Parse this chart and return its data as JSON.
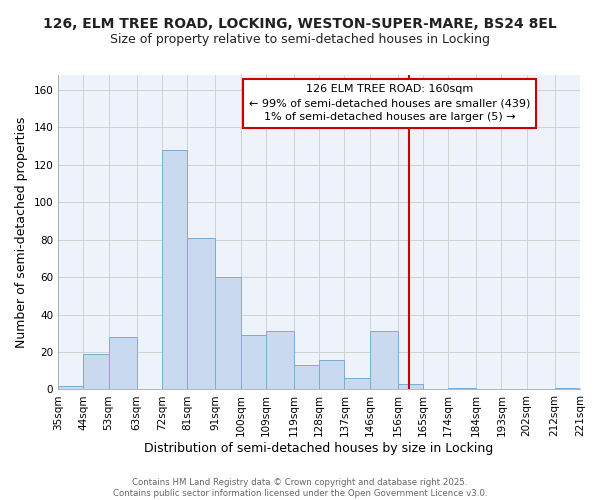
{
  "title": "126, ELM TREE ROAD, LOCKING, WESTON-SUPER-MARE, BS24 8EL",
  "subtitle": "Size of property relative to semi-detached houses in Locking",
  "xlabel": "Distribution of semi-detached houses by size in Locking",
  "ylabel": "Number of semi-detached properties",
  "bar_edges": [
    35,
    44,
    53,
    63,
    72,
    81,
    91,
    100,
    109,
    119,
    128,
    137,
    146,
    156,
    165,
    174,
    184,
    193,
    202,
    212,
    221
  ],
  "bar_heights": [
    2,
    19,
    28,
    0,
    128,
    81,
    60,
    29,
    31,
    13,
    16,
    6,
    31,
    3,
    0,
    1,
    0,
    0,
    0,
    1
  ],
  "tick_labels": [
    "35sqm",
    "44sqm",
    "53sqm",
    "63sqm",
    "72sqm",
    "81sqm",
    "91sqm",
    "100sqm",
    "109sqm",
    "119sqm",
    "128sqm",
    "137sqm",
    "146sqm",
    "156sqm",
    "165sqm",
    "174sqm",
    "184sqm",
    "193sqm",
    "202sqm",
    "212sqm",
    "221sqm"
  ],
  "bar_color": "#c8d9f0",
  "bar_edge_color": "#7aadd4",
  "vline_x": 160,
  "vline_color": "#cc0000",
  "annotation_title": "126 ELM TREE ROAD: 160sqm",
  "annotation_line1": "← 99% of semi-detached houses are smaller (439)",
  "annotation_line2": "1% of semi-detached houses are larger (5) →",
  "annotation_box_color": "#ffffff",
  "annotation_box_edge": "#cc0000",
  "ylim": [
    0,
    168
  ],
  "yticks": [
    0,
    20,
    40,
    60,
    80,
    100,
    120,
    140,
    160
  ],
  "grid_color": "#cccccc",
  "plot_bg_color": "#eef2fb",
  "figure_bg_color": "#ffffff",
  "footer1": "Contains HM Land Registry data © Crown copyright and database right 2025.",
  "footer2": "Contains public sector information licensed under the Open Government Licence v3.0.",
  "title_fontsize": 10,
  "subtitle_fontsize": 9,
  "axis_label_fontsize": 9,
  "tick_fontsize": 7.5,
  "annotation_fontsize": 8
}
